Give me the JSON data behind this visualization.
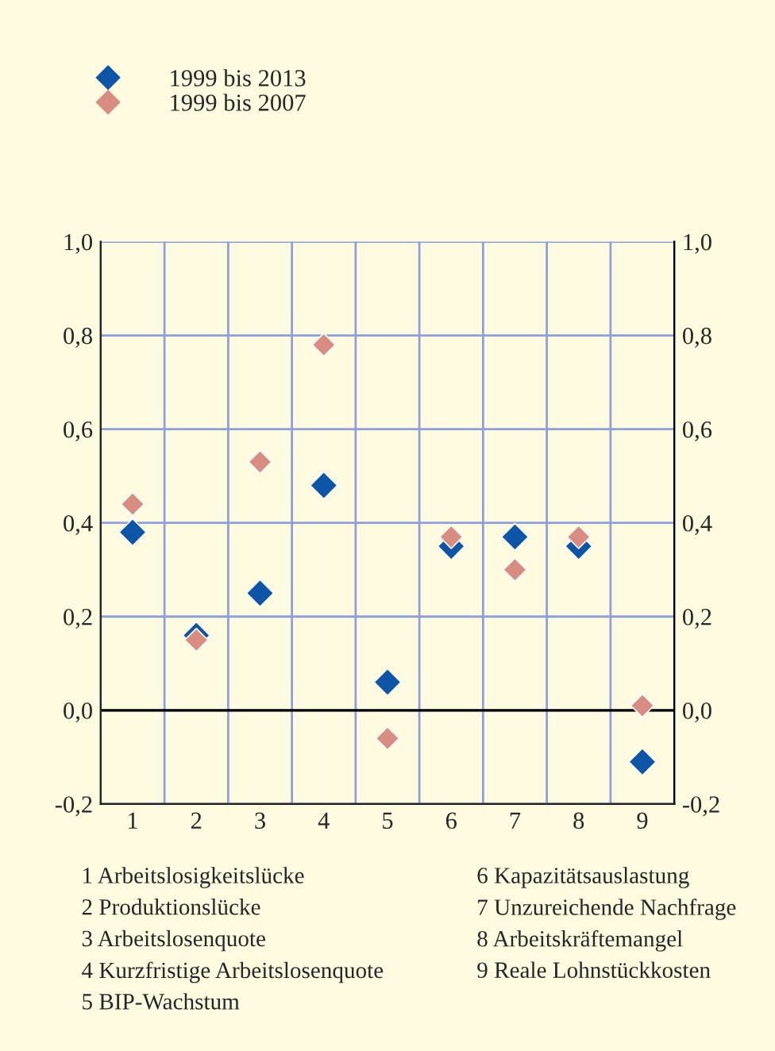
{
  "chart_data": {
    "type": "scatter",
    "categories": [
      "1",
      "2",
      "3",
      "4",
      "5",
      "6",
      "7",
      "8",
      "9"
    ],
    "series": [
      {
        "name": "1999 bis 2013",
        "color": "#0d55a6",
        "values": [
          0.38,
          0.16,
          0.25,
          0.48,
          0.06,
          0.35,
          0.37,
          0.35,
          -0.11
        ]
      },
      {
        "name": "1999 bis 2007",
        "color": "#d98c80",
        "values": [
          0.44,
          0.15,
          0.53,
          0.78,
          -0.06,
          0.37,
          0.3,
          0.37,
          0.01
        ]
      }
    ],
    "marker": "diamond",
    "ylim": [
      -0.2,
      1.0
    ],
    "yticks": [
      {
        "value": -0.2,
        "label": "-0,2"
      },
      {
        "value": 0.0,
        "label": "0,0"
      },
      {
        "value": 0.2,
        "label": "0,2"
      },
      {
        "value": 0.4,
        "label": "0,4"
      },
      {
        "value": 0.6,
        "label": "0,6"
      },
      {
        "value": 0.8,
        "label": "0,8"
      },
      {
        "value": 1.0,
        "label": "1,0"
      }
    ],
    "y2lim": [
      -0.2,
      1.0
    ],
    "y2ticks": [
      {
        "value": -0.2,
        "label": "-0,2"
      },
      {
        "value": 0.0,
        "label": "0,0"
      },
      {
        "value": 0.2,
        "label": "0,2"
      },
      {
        "value": 0.4,
        "label": "0,4"
      },
      {
        "value": 0.6,
        "label": "0,6"
      },
      {
        "value": 0.8,
        "label": "0,8"
      },
      {
        "value": 1.0,
        "label": "1,0"
      }
    ],
    "ref_lines": [
      {
        "axis": "y",
        "value": 0.0,
        "color": "#000000"
      }
    ],
    "grid": true,
    "legend": "top left",
    "annotations": [
      "1 Arbeitslosigkeitslücke",
      "2 Produktionslücke",
      "3 Arbeitslosenquote",
      "4 Kurzfristige Arbeitslosenquote",
      "5 BIP-Wachstum",
      "6 Kapazitätsauslastung",
      "7 Unzureichende Nachfrage",
      "8 Arbeitskräftemangel",
      "9 Reale Lohnstückkosten"
    ]
  }
}
